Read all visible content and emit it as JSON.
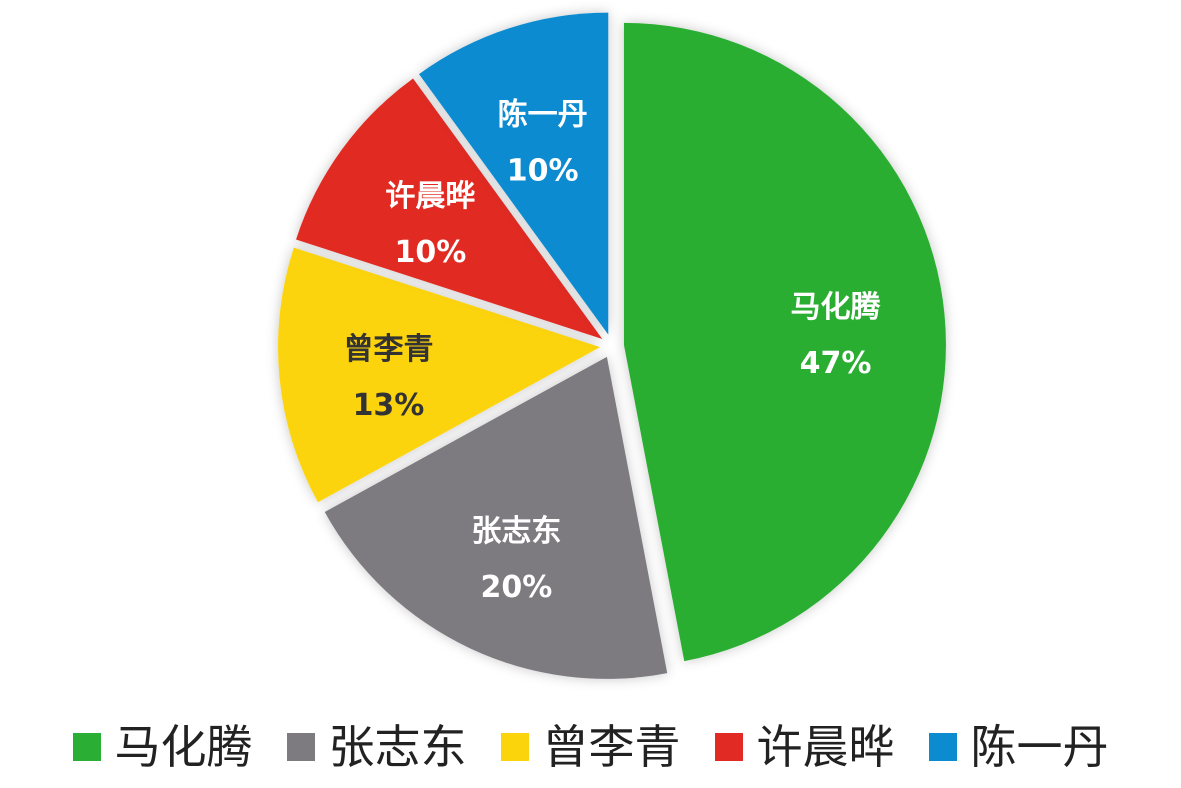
{
  "chart_data": {
    "type": "pie",
    "start_angle_deg": 0,
    "direction": "clockwise",
    "slices": [
      {
        "name": "马化腾",
        "value": 47,
        "label": "47%",
        "color": "#2aae33",
        "text_color": "#ffffff"
      },
      {
        "name": "张志东",
        "value": 20,
        "label": "20%",
        "color": "#7d7a80",
        "text_color": "#ffffff"
      },
      {
        "name": "曾李青",
        "value": 13,
        "label": "13%",
        "color": "#fcd40b",
        "text_color": "#333333"
      },
      {
        "name": "许晨晔",
        "value": 10,
        "label": "10%",
        "color": "#e02a23",
        "text_color": "#ffffff"
      },
      {
        "name": "陈一丹",
        "value": 10,
        "label": "10%",
        "color": "#0d8bd1",
        "text_color": "#ffffff"
      }
    ],
    "legend": {
      "position": "bottom",
      "items": [
        "马化腾",
        "张志东",
        "曾李青",
        "许晨晔",
        "陈一丹"
      ]
    }
  }
}
